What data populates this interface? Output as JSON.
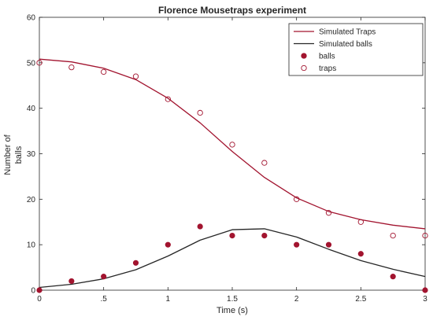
{
  "chart_data": {
    "type": "line",
    "title": "Florence Mousetraps experiment",
    "xlabel": "Time (s)",
    "ylabel_lines": [
      "Number of",
      "balls"
    ],
    "xlim": [
      0,
      3
    ],
    "ylim": [
      0,
      60
    ],
    "x_ticks": [
      {
        "value": 0,
        "label": "0"
      },
      {
        "value": 0.5,
        "label": ".5"
      },
      {
        "value": 1,
        "label": "1"
      },
      {
        "value": 1.5,
        "label": "1.5"
      },
      {
        "value": 2,
        "label": "2"
      },
      {
        "value": 2.5,
        "label": "2.5"
      },
      {
        "value": 3,
        "label": "3"
      }
    ],
    "y_ticks": [
      {
        "value": 0,
        "label": "0"
      },
      {
        "value": 10,
        "label": "10"
      },
      {
        "value": 20,
        "label": "20"
      },
      {
        "value": 30,
        "label": "30"
      },
      {
        "value": 40,
        "label": "40"
      },
      {
        "value": 50,
        "label": "50"
      },
      {
        "value": 60,
        "label": "60"
      }
    ],
    "grid": false,
    "legend_position": "top-right",
    "series": [
      {
        "name": "Simulated Traps",
        "kind": "line",
        "color": "#a2142f",
        "x": [
          0,
          0.25,
          0.5,
          0.75,
          1,
          1.25,
          1.5,
          1.75,
          2,
          2.25,
          2.5,
          2.75,
          3
        ],
        "y": [
          50.8,
          50.2,
          48.8,
          46.3,
          42.2,
          36.8,
          30.5,
          24.8,
          20.3,
          17.3,
          15.5,
          14.3,
          13.5
        ]
      },
      {
        "name": "Simulated balls",
        "kind": "line",
        "color": "#262626",
        "x": [
          0,
          0.25,
          0.5,
          0.75,
          1,
          1.25,
          1.5,
          1.75,
          2,
          2.25,
          2.5,
          2.75,
          3
        ],
        "y": [
          0.6,
          1.3,
          2.5,
          4.5,
          7.5,
          11,
          13.3,
          13.5,
          11.7,
          9,
          6.5,
          4.6,
          3
        ]
      },
      {
        "name": "balls",
        "kind": "scatter-filled",
        "color": "#a2142f",
        "x": [
          0,
          0.25,
          0.5,
          0.75,
          1,
          1.25,
          1.5,
          1.75,
          2,
          2.25,
          2.5,
          2.75,
          3
        ],
        "y": [
          0,
          2,
          3,
          6,
          10,
          14,
          12,
          12,
          10,
          10,
          8,
          3,
          0
        ]
      },
      {
        "name": "traps",
        "kind": "scatter-open",
        "color": "#a2142f",
        "x": [
          0,
          0.25,
          0.5,
          0.75,
          1,
          1.25,
          1.5,
          1.75,
          2,
          2.25,
          2.5,
          2.75,
          3
        ],
        "y": [
          50,
          49,
          48,
          47,
          42,
          39,
          32,
          28,
          20,
          17,
          15,
          12,
          12
        ]
      }
    ]
  }
}
